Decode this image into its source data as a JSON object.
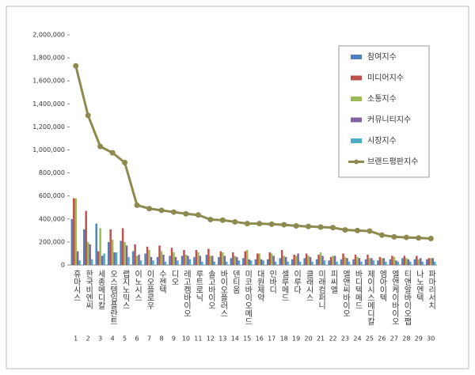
{
  "chart_data": {
    "type": "bar",
    "categories": [
      "휴마시스",
      "한국비엔씨",
      "세종메디칼",
      "오스템임플란트",
      "랩지노믹스",
      "이노시스",
      "이오플로우",
      "수젠텍",
      "디오",
      "레고켐바이오",
      "루트로닉",
      "솔고바이오",
      "바이오플러스",
      "덴티움",
      "미코바이오메드",
      "대원제약",
      "인바디",
      "셀루메드",
      "이루다",
      "클래시스",
      "미래컴퍼니",
      "피씨엘",
      "엘앤씨바이오",
      "바디텍메드",
      "제이시스메디칼",
      "엠아이텍",
      "엘앤케이바이오",
      "티앤알바이오팹",
      "나노엔텍",
      "파마리서치"
    ],
    "ranks": [
      1,
      2,
      3,
      4,
      5,
      6,
      7,
      8,
      9,
      10,
      11,
      12,
      13,
      14,
      15,
      16,
      17,
      18,
      19,
      20,
      21,
      22,
      23,
      24,
      25,
      26,
      27,
      28,
      29,
      30
    ],
    "ylim": [
      0,
      2000000
    ],
    "yticks": [
      0,
      {
        "value": 200000,
        "label": "200,000"
      },
      {
        "value": 400000,
        "label": "400,000"
      },
      {
        "value": 600000,
        "label": "600,000"
      },
      {
        "value": 800000,
        "label": "800,000"
      },
      {
        "value": 1000000,
        "label": "1,000,000"
      },
      {
        "value": 1200000,
        "label": "1,200,000"
      },
      {
        "value": 1400000,
        "label": "1,400,000"
      },
      {
        "value": 1600000,
        "label": "1,600,000"
      },
      {
        "value": 1800000,
        "label": "1,800,000"
      },
      {
        "value": 2000000,
        "label": "2,000,000"
      }
    ],
    "grid": false,
    "legend": "upper right",
    "series": [
      {
        "name": "참여지수",
        "color": "#4f81bd",
        "values": [
          400000,
          310000,
          360000,
          200000,
          210000,
          120000,
          100000,
          70000,
          80000,
          80000,
          70000,
          90000,
          70000,
          60000,
          60000,
          50000,
          50000,
          60000,
          50000,
          60000,
          50000,
          40000,
          50000,
          50000,
          50000,
          40000,
          50000,
          60000,
          50000,
          50000
        ]
      },
      {
        "name": "미디어지수",
        "color": "#c0504d",
        "values": [
          580000,
          470000,
          120000,
          310000,
          320000,
          180000,
          160000,
          170000,
          150000,
          130000,
          130000,
          140000,
          120000,
          110000,
          120000,
          100000,
          110000,
          130000,
          90000,
          100000,
          90000,
          70000,
          100000,
          90000,
          90000,
          70000,
          80000,
          80000,
          80000,
          60000
        ]
      },
      {
        "name": "소통지수",
        "color": "#9bbb59",
        "values": [
          580000,
          200000,
          320000,
          220000,
          200000,
          80000,
          130000,
          120000,
          110000,
          90000,
          110000,
          80000,
          110000,
          80000,
          130000,
          100000,
          100000,
          80000,
          80000,
          80000,
          110000,
          80000,
          70000,
          70000,
          60000,
          60000,
          70000,
          60000,
          50000,
          60000
        ]
      },
      {
        "name": "커뮤니티지수",
        "color": "#8064a2",
        "values": [
          120000,
          180000,
          80000,
          110000,
          170000,
          90000,
          70000,
          90000,
          70000,
          80000,
          80000,
          80000,
          80000,
          70000,
          50000,
          50000,
          80000,
          70000,
          100000,
          70000,
          80000,
          80000,
          60000,
          60000,
          60000,
          60000,
          40000,
          50000,
          60000,
          60000
        ]
      },
      {
        "name": "시장지수",
        "color": "#4bacc6",
        "values": [
          40000,
          50000,
          100000,
          110000,
          70000,
          40000,
          40000,
          30000,
          40000,
          50000,
          30000,
          30000,
          30000,
          40000,
          40000,
          40000,
          30000,
          30000,
          30000,
          30000,
          40000,
          30000,
          30000,
          30000,
          40000,
          30000,
          30000,
          30000,
          30000,
          30000
        ]
      },
      {
        "name": "브랜드평판지수",
        "color": "#8c8a4e",
        "type": "line",
        "values": [
          1730000,
          1300000,
          1030000,
          975000,
          890000,
          520000,
          490000,
          475000,
          460000,
          445000,
          435000,
          395000,
          390000,
          375000,
          360000,
          360000,
          355000,
          350000,
          340000,
          335000,
          330000,
          325000,
          305000,
          300000,
          295000,
          260000,
          245000,
          240000,
          235000,
          230000
        ]
      }
    ]
  }
}
